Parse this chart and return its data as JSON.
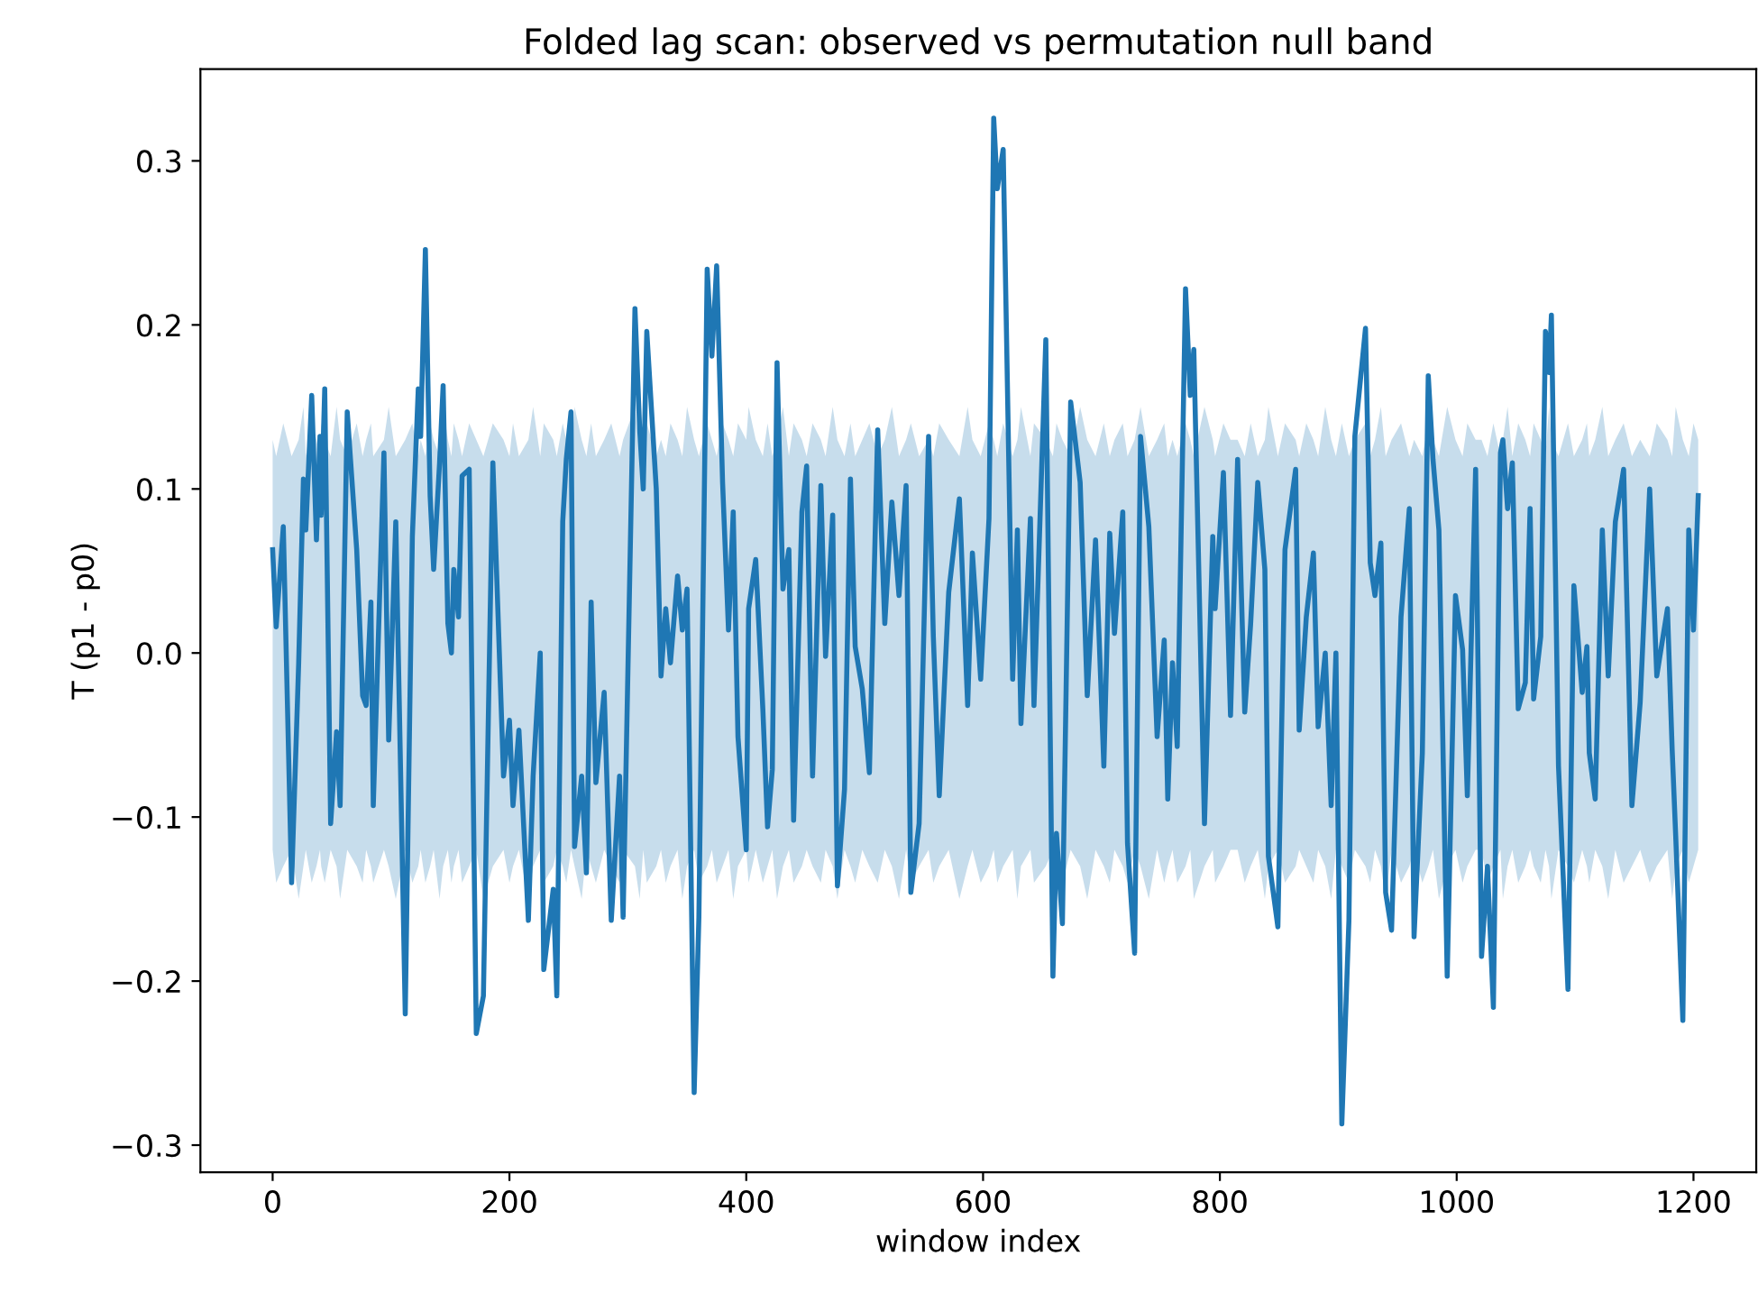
{
  "chart_data": {
    "type": "line",
    "title": "Folded lag scan: observed vs permutation null band",
    "xlabel": "window index",
    "ylabel": "T (p1 - p0)",
    "xlim": [
      -61,
      1253
    ],
    "ylim": [
      -0.3165,
      0.356
    ],
    "xticks": [
      0,
      200,
      400,
      600,
      800,
      1000,
      1200
    ],
    "yticks": [
      {
        "value": -0.3,
        "label": "−0.3"
      },
      {
        "value": -0.2,
        "label": "−0.2"
      },
      {
        "value": -0.1,
        "label": "−0.1"
      },
      {
        "value": 0,
        "label": "0.0"
      },
      {
        "value": 0.1,
        "label": "0.1"
      },
      {
        "value": 0.2,
        "label": "0.2"
      },
      {
        "value": 0.3,
        "label": "0.3"
      }
    ],
    "grid": false,
    "marker": "none",
    "line_style": "solid",
    "series": [
      {
        "color": "#1f77b4",
        "x": [
          0,
          3,
          9,
          16,
          22,
          26,
          28,
          33,
          37,
          40,
          41,
          44,
          49,
          54,
          57,
          63,
          71,
          76,
          79,
          83,
          85,
          94,
          98,
          104,
          112,
          118,
          123,
          125,
          129,
          133,
          136,
          141,
          144,
          148,
          151,
          153,
          157,
          160,
          166,
          172,
          178,
          186,
          195,
          200,
          203,
          208,
          216,
          220,
          226,
          229,
          237,
          240,
          245,
          248,
          252,
          255,
          261,
          265,
          269,
          273,
          280,
          286,
          293,
          296,
          306,
          310,
          313,
          316,
          324,
          328,
          332,
          336,
          342,
          346,
          350,
          356,
          360,
          367,
          371,
          375,
          380,
          385,
          389,
          393,
          400,
          402,
          408,
          414,
          418,
          422,
          426,
          431,
          436,
          440,
          447,
          451,
          456,
          463,
          467,
          473,
          477,
          483,
          488,
          492,
          498,
          504,
          511,
          517,
          523,
          529,
          535,
          539,
          546,
          554,
          558,
          563,
          571,
          580,
          587,
          591,
          598,
          605,
          609,
          612,
          617,
          625,
          629,
          632,
          640,
          643,
          653,
          659,
          662,
          667,
          674,
          682,
          688,
          695,
          702,
          707,
          711,
          718,
          722,
          728,
          733,
          740,
          747,
          753,
          756,
          760,
          764,
          771,
          775,
          778,
          787,
          794,
          796,
          803,
          809,
          815,
          821,
          826,
          832,
          838,
          841,
          849,
          855,
          864,
          867,
          873,
          879,
          883,
          889,
          894,
          898,
          903,
          909,
          914,
          923,
          927,
          931,
          936,
          940,
          945,
          953,
          960,
          964,
          971,
          976,
          980,
          985,
          992,
          999,
          1005,
          1009,
          1016,
          1021,
          1026,
          1031,
          1037,
          1039,
          1043,
          1047,
          1052,
          1058,
          1062,
          1065,
          1071,
          1075,
          1078,
          1080,
          1086,
          1094,
          1099,
          1106,
          1110,
          1112,
          1117,
          1123,
          1128,
          1134,
          1141,
          1148,
          1155,
          1163,
          1169,
          1178,
          1182,
          1185,
          1191,
          1196,
          1200,
          1204
        ],
        "values": [
          0.063,
          0.016,
          0.077,
          -0.14,
          -0.006,
          0.106,
          0.075,
          0.157,
          0.069,
          0.132,
          0.084,
          0.161,
          -0.104,
          -0.048,
          -0.093,
          0.147,
          0.063,
          -0.026,
          -0.032,
          0.031,
          -0.093,
          0.122,
          -0.053,
          0.08,
          -0.22,
          0.071,
          0.161,
          0.132,
          0.246,
          0.096,
          0.051,
          0.116,
          0.163,
          0.018,
          0.0,
          0.051,
          0.022,
          0.108,
          0.112,
          -0.232,
          -0.209,
          0.116,
          -0.075,
          -0.041,
          -0.093,
          -0.047,
          -0.163,
          -0.075,
          0.0,
          -0.193,
          -0.144,
          -0.209,
          0.08,
          0.118,
          0.147,
          -0.118,
          -0.075,
          -0.134,
          0.031,
          -0.079,
          -0.024,
          -0.163,
          -0.075,
          -0.161,
          0.21,
          0.136,
          0.1,
          0.196,
          0.1,
          -0.014,
          0.027,
          -0.006,
          0.047,
          0.014,
          0.039,
          -0.268,
          -0.161,
          0.234,
          0.181,
          0.236,
          0.104,
          0.014,
          0.086,
          -0.051,
          -0.12,
          0.027,
          0.057,
          -0.034,
          -0.106,
          -0.071,
          0.177,
          0.039,
          0.063,
          -0.102,
          0.086,
          0.114,
          -0.075,
          0.102,
          -0.002,
          0.084,
          -0.142,
          -0.083,
          0.106,
          0.004,
          -0.022,
          -0.073,
          0.136,
          0.018,
          0.092,
          0.035,
          0.102,
          -0.146,
          -0.104,
          0.132,
          0.01,
          -0.087,
          0.037,
          0.094,
          -0.032,
          0.061,
          -0.016,
          0.082,
          0.326,
          0.283,
          0.307,
          -0.016,
          0.075,
          -0.043,
          0.082,
          -0.032,
          0.191,
          -0.197,
          -0.11,
          -0.165,
          0.153,
          0.104,
          -0.026,
          0.069,
          -0.069,
          0.073,
          0.012,
          0.086,
          -0.116,
          -0.183,
          0.132,
          0.077,
          -0.051,
          0.008,
          -0.089,
          -0.006,
          -0.057,
          0.222,
          0.157,
          0.185,
          -0.104,
          0.071,
          0.027,
          0.11,
          -0.038,
          0.118,
          -0.036,
          0.018,
          0.104,
          0.051,
          -0.124,
          -0.167,
          0.063,
          0.112,
          -0.047,
          0.022,
          0.061,
          -0.045,
          0.0,
          -0.093,
          0.0,
          -0.287,
          -0.163,
          0.132,
          0.198,
          0.055,
          0.035,
          0.067,
          -0.146,
          -0.169,
          0.022,
          0.088,
          -0.173,
          -0.061,
          0.169,
          0.118,
          0.075,
          -0.197,
          0.035,
          0.002,
          -0.087,
          0.112,
          -0.185,
          -0.13,
          -0.216,
          0.122,
          0.13,
          0.088,
          0.116,
          -0.034,
          -0.018,
          0.088,
          -0.028,
          0.01,
          0.196,
          0.171,
          0.206,
          -0.069,
          -0.205,
          0.041,
          -0.024,
          0.004,
          -0.061,
          -0.089,
          0.075,
          -0.014,
          0.08,
          0.112,
          -0.093,
          -0.03,
          0.1,
          -0.014,
          0.027,
          -0.059,
          -0.112,
          -0.224,
          0.075,
          0.014,
          0.096
        ],
        "upper": [
          0.13,
          0.12,
          0.14,
          0.12,
          0.13,
          0.15,
          0.12,
          0.14,
          0.13,
          0.12,
          0.14,
          0.13,
          0.12,
          0.15,
          0.13,
          0.12,
          0.14,
          0.12,
          0.13,
          0.14,
          0.12,
          0.13,
          0.15,
          0.12,
          0.13,
          0.14,
          0.12,
          0.13,
          0.12,
          0.14,
          0.13,
          0.12,
          0.15,
          0.13,
          0.12,
          0.14,
          0.13,
          0.12,
          0.14,
          0.13,
          0.12,
          0.14,
          0.13,
          0.12,
          0.14,
          0.12,
          0.13,
          0.15,
          0.12,
          0.14,
          0.13,
          0.12,
          0.14,
          0.13,
          0.12,
          0.15,
          0.13,
          0.12,
          0.14,
          0.12,
          0.13,
          0.14,
          0.12,
          0.13,
          0.15,
          0.12,
          0.13,
          0.14,
          0.12,
          0.13,
          0.12,
          0.14,
          0.13,
          0.12,
          0.15,
          0.13,
          0.12,
          0.14,
          0.13,
          0.12,
          0.14,
          0.13,
          0.12,
          0.14,
          0.13,
          0.15,
          0.13,
          0.12,
          0.14,
          0.12,
          0.13,
          0.15,
          0.12,
          0.14,
          0.13,
          0.12,
          0.14,
          0.13,
          0.12,
          0.15,
          0.13,
          0.12,
          0.14,
          0.12,
          0.13,
          0.14,
          0.12,
          0.13,
          0.15,
          0.12,
          0.13,
          0.14,
          0.12,
          0.13,
          0.12,
          0.14,
          0.13,
          0.12,
          0.15,
          0.13,
          0.12,
          0.14,
          0.13,
          0.12,
          0.14,
          0.12,
          0.13,
          0.15,
          0.12,
          0.14,
          0.13,
          0.12,
          0.14,
          0.13,
          0.12,
          0.15,
          0.13,
          0.12,
          0.14,
          0.12,
          0.13,
          0.14,
          0.12,
          0.13,
          0.15,
          0.12,
          0.13,
          0.14,
          0.12,
          0.13,
          0.12,
          0.14,
          0.13,
          0.12,
          0.15,
          0.13,
          0.12,
          0.14,
          0.13,
          0.13,
          0.12,
          0.14,
          0.12,
          0.13,
          0.15,
          0.12,
          0.14,
          0.13,
          0.12,
          0.14,
          0.13,
          0.12,
          0.15,
          0.13,
          0.12,
          0.14,
          0.12,
          0.13,
          0.14,
          0.12,
          0.13,
          0.15,
          0.12,
          0.13,
          0.14,
          0.12,
          0.13,
          0.12,
          0.14,
          0.13,
          0.12,
          0.15,
          0.13,
          0.12,
          0.14,
          0.13,
          0.13,
          0.12,
          0.14,
          0.12,
          0.13,
          0.15,
          0.12,
          0.14,
          0.13,
          0.12,
          0.14,
          0.13,
          0.12,
          0.15,
          0.13,
          0.12,
          0.14,
          0.12,
          0.13,
          0.14,
          0.12,
          0.13,
          0.15,
          0.12,
          0.13,
          0.14,
          0.12,
          0.13,
          0.12,
          0.14,
          0.13,
          0.12,
          0.15,
          0.13,
          0.12,
          0.14,
          0.13
        ],
        "lower": [
          -0.12,
          -0.14,
          -0.13,
          -0.12,
          -0.15,
          -0.13,
          -0.12,
          -0.14,
          -0.13,
          -0.12,
          -0.13,
          -0.14,
          -0.12,
          -0.13,
          -0.15,
          -0.12,
          -0.13,
          -0.14,
          -0.12,
          -0.13,
          -0.14,
          -0.12,
          -0.13,
          -0.15,
          -0.12,
          -0.14,
          -0.13,
          -0.12,
          -0.14,
          -0.13,
          -0.12,
          -0.15,
          -0.13,
          -0.12,
          -0.14,
          -0.13,
          -0.12,
          -0.14,
          -0.13,
          -0.12,
          -0.15,
          -0.13,
          -0.12,
          -0.14,
          -0.13,
          -0.12,
          -0.15,
          -0.13,
          -0.12,
          -0.14,
          -0.13,
          -0.12,
          -0.13,
          -0.14,
          -0.12,
          -0.13,
          -0.15,
          -0.12,
          -0.13,
          -0.14,
          -0.12,
          -0.13,
          -0.14,
          -0.12,
          -0.13,
          -0.15,
          -0.12,
          -0.14,
          -0.13,
          -0.12,
          -0.14,
          -0.13,
          -0.12,
          -0.15,
          -0.13,
          -0.12,
          -0.14,
          -0.13,
          -0.12,
          -0.14,
          -0.13,
          -0.12,
          -0.15,
          -0.13,
          -0.12,
          -0.14,
          -0.12,
          -0.14,
          -0.13,
          -0.12,
          -0.15,
          -0.13,
          -0.12,
          -0.14,
          -0.13,
          -0.12,
          -0.13,
          -0.14,
          -0.12,
          -0.13,
          -0.15,
          -0.12,
          -0.13,
          -0.14,
          -0.12,
          -0.13,
          -0.14,
          -0.12,
          -0.13,
          -0.15,
          -0.12,
          -0.14,
          -0.13,
          -0.12,
          -0.14,
          -0.13,
          -0.12,
          -0.15,
          -0.13,
          -0.12,
          -0.14,
          -0.13,
          -0.12,
          -0.14,
          -0.13,
          -0.12,
          -0.15,
          -0.13,
          -0.12,
          -0.14,
          -0.13,
          -0.12,
          -0.13,
          -0.14,
          -0.12,
          -0.13,
          -0.15,
          -0.12,
          -0.13,
          -0.14,
          -0.12,
          -0.13,
          -0.14,
          -0.12,
          -0.13,
          -0.15,
          -0.12,
          -0.14,
          -0.13,
          -0.12,
          -0.14,
          -0.13,
          -0.12,
          -0.15,
          -0.13,
          -0.12,
          -0.14,
          -0.13,
          -0.12,
          -0.12,
          -0.14,
          -0.13,
          -0.12,
          -0.15,
          -0.13,
          -0.12,
          -0.14,
          -0.13,
          -0.12,
          -0.13,
          -0.14,
          -0.12,
          -0.13,
          -0.15,
          -0.12,
          -0.13,
          -0.14,
          -0.12,
          -0.13,
          -0.14,
          -0.12,
          -0.13,
          -0.15,
          -0.12,
          -0.14,
          -0.13,
          -0.12,
          -0.14,
          -0.13,
          -0.12,
          -0.15,
          -0.13,
          -0.12,
          -0.14,
          -0.13,
          -0.12,
          -0.12,
          -0.14,
          -0.13,
          -0.12,
          -0.15,
          -0.13,
          -0.12,
          -0.14,
          -0.13,
          -0.12,
          -0.13,
          -0.14,
          -0.12,
          -0.13,
          -0.15,
          -0.12,
          -0.13,
          -0.14,
          -0.12,
          -0.13,
          -0.14,
          -0.12,
          -0.13,
          -0.15,
          -0.12,
          -0.14,
          -0.13,
          -0.12,
          -0.14,
          -0.13,
          -0.12,
          -0.15,
          -0.13,
          -0.12,
          -0.14,
          -0.13,
          -0.12
        ]
      }
    ]
  }
}
